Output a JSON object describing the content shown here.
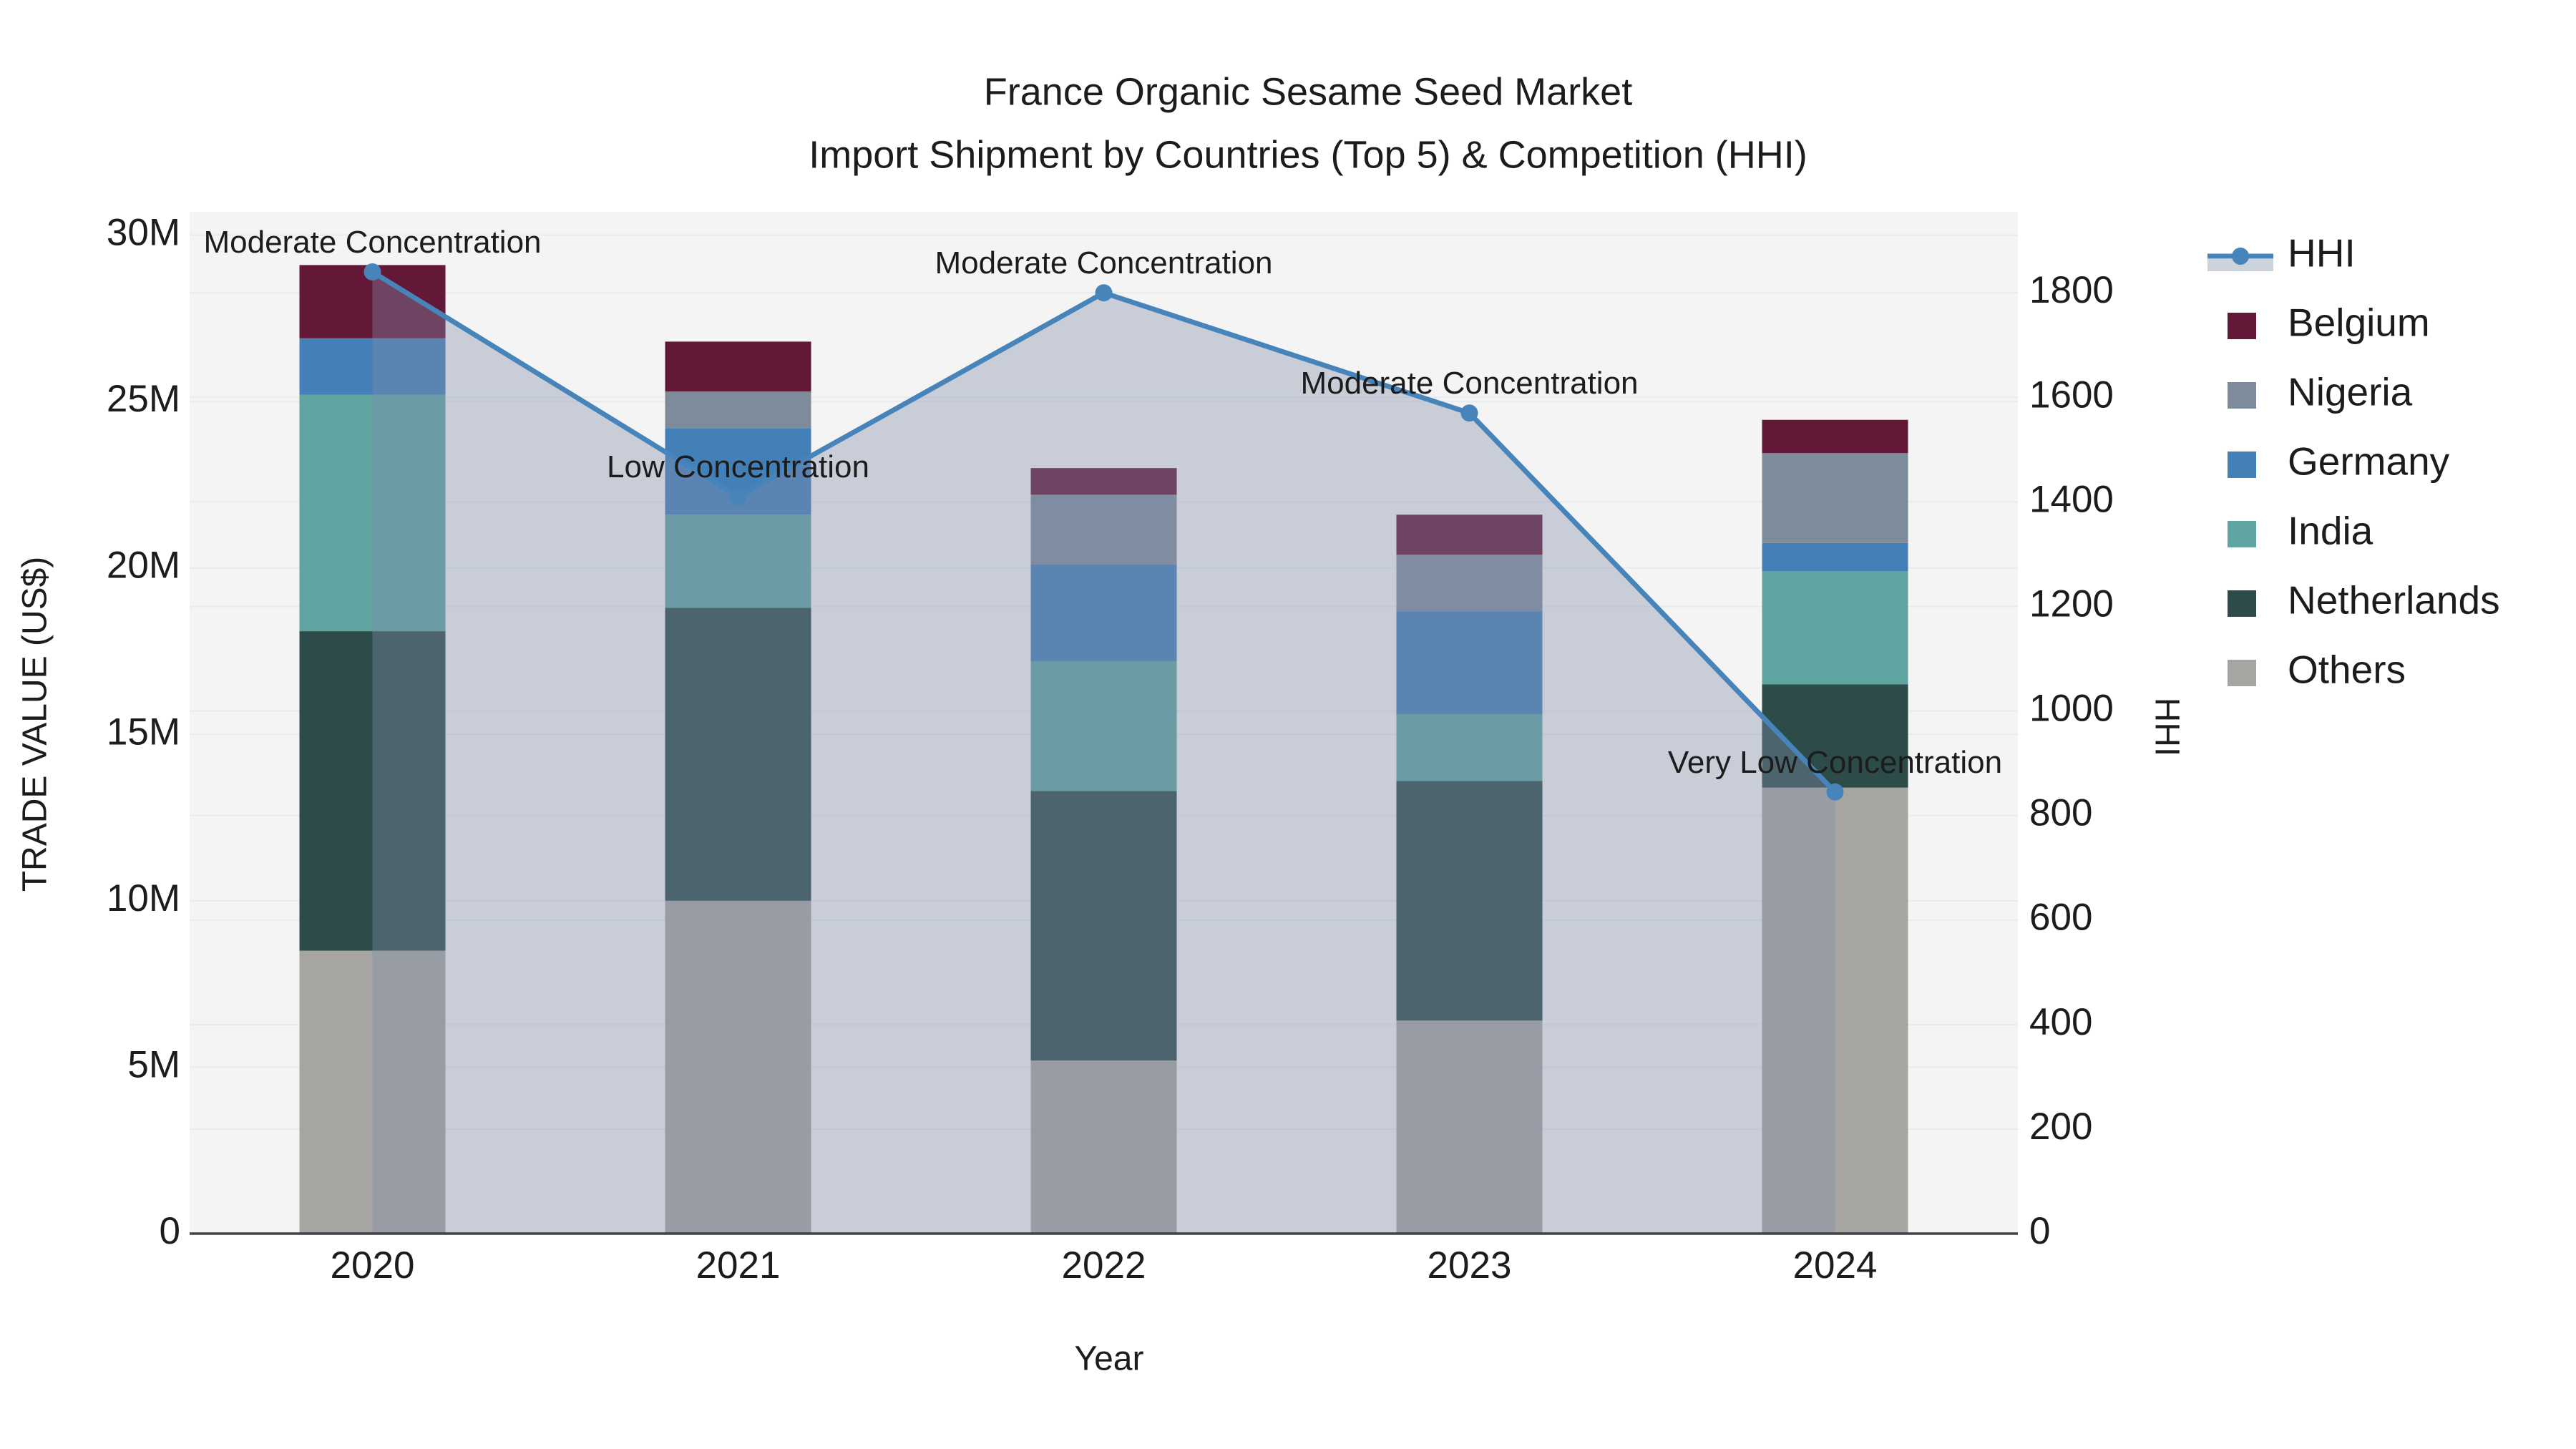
{
  "chart_data": {
    "type": "bar",
    "subtype": "stacked-bar-with-line-overlay",
    "title_line1": "France Organic Sesame Seed Market",
    "title_line2": "Import Shipment by Countries (Top 5) & Competition (HHI)",
    "xlabel": "Year",
    "ylabel_left": "TRADE VALUE (US$)",
    "ylabel_right": "HHI",
    "categories": [
      "2020",
      "2021",
      "2022",
      "2023",
      "2024"
    ],
    "bar_unit": "million US$",
    "series": [
      {
        "name": "Others",
        "color": "#a7a5a2",
        "values": [
          8.5,
          10.0,
          5.2,
          6.4,
          13.4
        ]
      },
      {
        "name": "Netherlands",
        "color": "#2d4b48",
        "values": [
          9.6,
          8.8,
          8.1,
          7.2,
          3.1
        ]
      },
      {
        "name": "India",
        "color": "#5ea4a0",
        "values": [
          7.1,
          2.8,
          3.9,
          2.0,
          3.4
        ]
      },
      {
        "name": "Germany",
        "color": "#4380b8",
        "values": [
          1.7,
          2.6,
          2.9,
          3.1,
          0.85
        ]
      },
      {
        "name": "Nigeria",
        "color": "#7e8b9b",
        "values": [
          0.0,
          1.1,
          2.1,
          1.7,
          2.7
        ]
      },
      {
        "name": "Belgium",
        "color": "#641838",
        "values": [
          2.2,
          1.5,
          0.8,
          1.2,
          1.0
        ]
      }
    ],
    "line_series": {
      "name": "HHI",
      "color": "#4784ba",
      "area_fill_color": "rgba(129,142,171,0.38)",
      "values": [
        1840,
        1410,
        1800,
        1570,
        845
      ],
      "point_annotations": [
        "Moderate Concentration",
        "Low Concentration",
        "Moderate Concentration",
        "Moderate Concentration",
        "Very Low Concentration"
      ]
    },
    "y_left": {
      "tick_labels": [
        "0",
        "5M",
        "10M",
        "15M",
        "20M",
        "25M",
        "30M"
      ],
      "tick_values": [
        0,
        5,
        10,
        15,
        20,
        25,
        30
      ],
      "max": 30.7
    },
    "y_right": {
      "tick_labels": [
        "0",
        "200",
        "400",
        "600",
        "800",
        "1000",
        "1200",
        "1400",
        "1600",
        "1800"
      ],
      "tick_values": [
        0,
        200,
        400,
        600,
        800,
        1000,
        1200,
        1400,
        1600,
        1800
      ],
      "max": 1955
    },
    "legend": [
      {
        "label": "HHI",
        "swatch": "line"
      },
      {
        "label": "Belgium",
        "swatch": "square"
      },
      {
        "label": "Nigeria",
        "swatch": "square"
      },
      {
        "label": "Germany",
        "swatch": "square"
      },
      {
        "label": "India",
        "swatch": "square"
      },
      {
        "label": "Netherlands",
        "swatch": "square"
      },
      {
        "label": "Others",
        "swatch": "square"
      }
    ],
    "colors": {
      "plot_bg": "#f4f4f4",
      "grid": "#e8eaec",
      "axis_line": "#3f4347",
      "text": "#1c1c1c",
      "legend_fill_band": "#ccd3dd"
    }
  }
}
